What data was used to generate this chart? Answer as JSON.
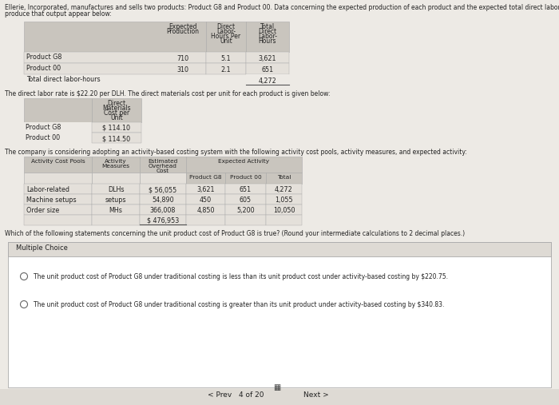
{
  "title_line1": "Ellerie, Incorporated, manufactures and sells two products: Product G8 and Product 00. Data concerning the expected production of each product and the expected total direct labor-hours (DLHs) required to",
  "title_line2": "produce that output appear below:",
  "dlr_text": "The direct labor rate is $22.20 per DLH. The direct materials cost per unit for each product is given below:",
  "abc_text": "The company is considering adopting an activity-based costing system with the following activity cost pools, activity measures, and expected activity:",
  "question_text": "Which of the following statements concerning the unit product cost of Product G8 is true? (Round your intermediate calculations to 2 decimal places.)",
  "multiple_choice_label": "Multiple Choice",
  "choice1": "The unit product cost of Product G8 under traditional costing is less than its unit product cost under activity-based costing by $220.75.",
  "choice2": "The unit product cost of Product G8 under traditional costing is greater than its unit product under activity-based costing by $340.83.",
  "nav_prev": "< Prev",
  "nav_page": "4 of 20",
  "nav_next": "Next >",
  "bg_color": "#edeae5",
  "table_header_bg": "#c9c5be",
  "table_row_bg": "#e4e0da",
  "white_bg": "#ffffff",
  "section_bg": "#dedad4",
  "border_color": "#aaaaaa",
  "text_color": "#222222",
  "t1_prod_g8": [
    "Product G8",
    "710",
    "5.1",
    "3,621"
  ],
  "t1_prod_00": [
    "Product 00",
    "310",
    "2.1",
    "651"
  ],
  "t1_total": "4,272",
  "t2_g8": "$ 114.10",
  "t2_00": "$ 114.50",
  "t3_rows": [
    [
      "Labor-related",
      "DLHs",
      "$ 56,055",
      "3,621",
      "651",
      "4,272"
    ],
    [
      "Machine setups",
      "setups",
      "54,890",
      "450",
      "605",
      "1,055"
    ],
    [
      "Order size",
      "MHs",
      "366,008",
      "4,850",
      "5,200",
      "10,050"
    ],
    [
      "",
      "",
      "$ 476,953",
      "",
      "",
      ""
    ]
  ]
}
